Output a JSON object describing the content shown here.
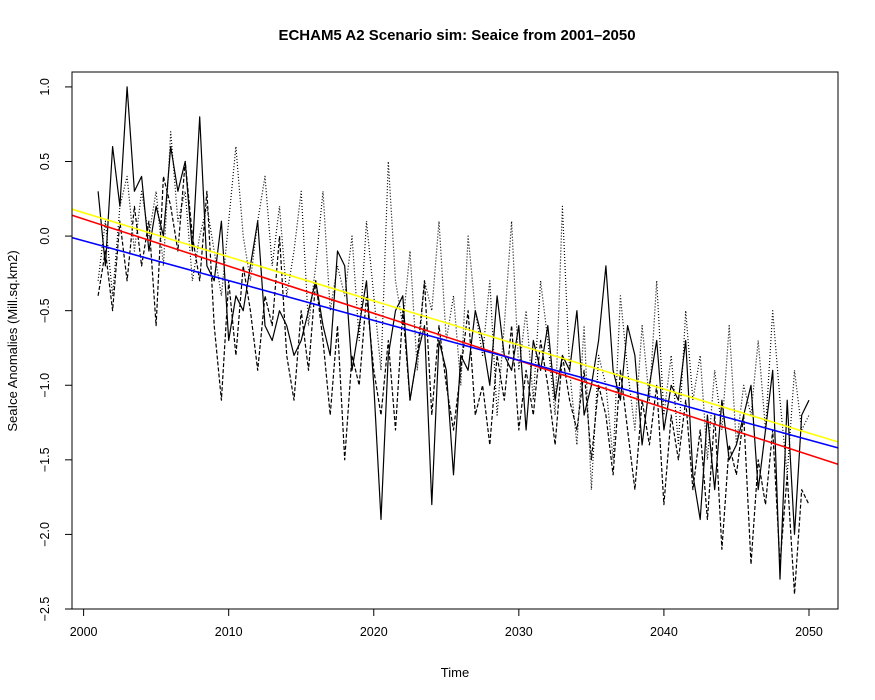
{
  "chart_data": {
    "type": "line",
    "title": "ECHAM5 A2 Scenario sim: Seaice from 2001–2050",
    "xlabel": "Time",
    "ylabel": "SeaIce Anomalies (Mill.sq.km2)",
    "xlim": [
      1999.2,
      2052.0
    ],
    "ylim": [
      -2.5,
      1.1
    ],
    "x_ticks": [
      2000,
      2010,
      2020,
      2030,
      2040,
      2050
    ],
    "x_tick_labels": [
      "2000",
      "2010",
      "2020",
      "2030",
      "2040",
      "2050"
    ],
    "y_ticks": [
      1.0,
      0.5,
      0.0,
      -0.5,
      -1.0,
      -1.5,
      -2.0,
      -2.5
    ],
    "y_tick_labels": [
      "1.0",
      "0.5",
      "0.0",
      "−0.5",
      "−1.0",
      "−1.5",
      "−2.0",
      "−2.5"
    ],
    "grid": false,
    "legend": "none",
    "series": [
      {
        "style": "solid",
        "color": "#000000",
        "x": [
          2001.0,
          2001.5,
          2002.0,
          2002.5,
          2003.0,
          2003.5,
          2004.0,
          2004.5,
          2005.0,
          2005.5,
          2006.0,
          2006.5,
          2007.0,
          2007.5,
          2008.0,
          2008.5,
          2009.0,
          2009.5,
          2010.0,
          2010.5,
          2011.0,
          2011.5,
          2012.0,
          2012.5,
          2013.0,
          2013.5,
          2014.0,
          2014.5,
          2015.0,
          2015.5,
          2016.0,
          2016.5,
          2017.0,
          2017.5,
          2018.0,
          2018.5,
          2019.0,
          2019.5,
          2020.0,
          2020.5,
          2021.0,
          2021.5,
          2022.0,
          2022.5,
          2023.0,
          2023.5,
          2024.0,
          2024.5,
          2025.0,
          2025.5,
          2026.0,
          2026.5,
          2027.0,
          2027.5,
          2028.0,
          2028.5,
          2029.0,
          2029.5,
          2030.0,
          2030.5,
          2031.0,
          2031.5,
          2032.0,
          2032.5,
          2033.0,
          2033.5,
          2034.0,
          2034.5,
          2035.0,
          2035.5,
          2036.0,
          2036.5,
          2037.0,
          2037.5,
          2038.0,
          2038.5,
          2039.0,
          2039.5,
          2040.0,
          2040.5,
          2041.0,
          2041.5,
          2042.0,
          2042.5,
          2043.0,
          2043.5,
          2044.0,
          2044.5,
          2045.0,
          2045.5,
          2046.0,
          2046.5,
          2047.0,
          2047.5,
          2048.0,
          2048.5,
          2049.0,
          2049.5,
          2050.0
        ],
        "y": [
          0.3,
          -0.2,
          0.6,
          0.2,
          1.0,
          0.3,
          0.4,
          -0.1,
          0.2,
          0.0,
          0.6,
          0.3,
          0.5,
          -0.1,
          0.8,
          -0.2,
          -0.3,
          0.1,
          -0.7,
          -0.4,
          -0.5,
          -0.2,
          0.1,
          -0.6,
          -0.7,
          -0.5,
          -0.6,
          -0.8,
          -0.7,
          -0.5,
          -0.3,
          -0.6,
          -0.8,
          -0.1,
          -0.2,
          -0.9,
          -0.6,
          -0.3,
          -1.0,
          -1.9,
          -0.8,
          -0.5,
          -0.4,
          -1.1,
          -0.8,
          -0.6,
          -1.8,
          -0.7,
          -0.9,
          -1.6,
          -0.8,
          -0.9,
          -0.5,
          -0.7,
          -1.0,
          -0.4,
          -0.8,
          -0.9,
          -0.6,
          -1.3,
          -0.7,
          -0.9,
          -0.6,
          -1.1,
          -0.8,
          -0.9,
          -0.5,
          -1.2,
          -1.0,
          -0.7,
          -0.2,
          -0.9,
          -1.1,
          -0.6,
          -0.8,
          -1.4,
          -1.0,
          -0.7,
          -1.3,
          -1.0,
          -1.1,
          -0.7,
          -1.6,
          -1.9,
          -1.2,
          -1.7,
          -1.1,
          -1.5,
          -1.4,
          -1.2,
          -1.0,
          -1.7,
          -1.3,
          -0.9,
          -2.3,
          -1.1,
          -2.0,
          -1.2,
          -1.1
        ]
      },
      {
        "style": "dashed",
        "color": "#000000",
        "x": [
          2001.0,
          2001.5,
          2002.0,
          2002.5,
          2003.0,
          2003.5,
          2004.0,
          2004.5,
          2005.0,
          2005.5,
          2006.0,
          2006.5,
          2007.0,
          2007.5,
          2008.0,
          2008.5,
          2009.0,
          2009.5,
          2010.0,
          2010.5,
          2011.0,
          2011.5,
          2012.0,
          2012.5,
          2013.0,
          2013.5,
          2014.0,
          2014.5,
          2015.0,
          2015.5,
          2016.0,
          2016.5,
          2017.0,
          2017.5,
          2018.0,
          2018.5,
          2019.0,
          2019.5,
          2020.0,
          2020.5,
          2021.0,
          2021.5,
          2022.0,
          2022.5,
          2023.0,
          2023.5,
          2024.0,
          2024.5,
          2025.0,
          2025.5,
          2026.0,
          2026.5,
          2027.0,
          2027.5,
          2028.0,
          2028.5,
          2029.0,
          2029.5,
          2030.0,
          2030.5,
          2031.0,
          2031.5,
          2032.0,
          2032.5,
          2033.0,
          2033.5,
          2034.0,
          2034.5,
          2035.0,
          2035.5,
          2036.0,
          2036.5,
          2037.0,
          2037.5,
          2038.0,
          2038.5,
          2039.0,
          2039.5,
          2040.0,
          2040.5,
          2041.0,
          2041.5,
          2042.0,
          2042.5,
          2043.0,
          2043.5,
          2044.0,
          2044.5,
          2045.0,
          2045.5,
          2046.0,
          2046.5,
          2047.0,
          2047.5,
          2048.0,
          2048.5,
          2049.0,
          2049.5,
          2050.0
        ],
        "y": [
          -0.4,
          -0.1,
          -0.5,
          0.1,
          -0.3,
          0.2,
          -0.2,
          0.1,
          -0.6,
          0.4,
          0.2,
          -0.1,
          0.5,
          0.0,
          -0.3,
          0.3,
          -0.6,
          -1.1,
          -0.3,
          -0.8,
          -0.2,
          -0.5,
          -0.9,
          -0.4,
          -0.6,
          0.0,
          -0.8,
          -1.1,
          -0.5,
          -0.9,
          -0.3,
          -0.7,
          -1.2,
          -0.6,
          -1.5,
          -0.8,
          -1.0,
          -0.4,
          -0.9,
          -1.2,
          -0.7,
          -1.3,
          -0.5,
          -1.1,
          -0.8,
          -0.3,
          -1.2,
          -0.6,
          -1.0,
          -1.3,
          -0.9,
          -0.5,
          -1.2,
          -1.0,
          -1.4,
          -0.8,
          -1.1,
          -0.6,
          -1.3,
          -0.9,
          -1.2,
          -0.7,
          -1.0,
          -1.4,
          -0.8,
          -1.1,
          -1.3,
          -0.9,
          -1.5,
          -1.0,
          -1.2,
          -1.6,
          -0.9,
          -1.3,
          -1.7,
          -1.1,
          -1.4,
          -1.0,
          -1.8,
          -1.2,
          -1.5,
          -1.1,
          -1.7,
          -1.3,
          -1.9,
          -1.2,
          -2.1,
          -1.4,
          -1.6,
          -1.2,
          -2.2,
          -1.5,
          -1.8,
          -1.3,
          -2.2,
          -1.6,
          -2.4,
          -1.7,
          -1.8
        ]
      },
      {
        "style": "dotted",
        "color": "#000000",
        "x": [
          2001.0,
          2001.5,
          2002.0,
          2002.5,
          2003.0,
          2003.5,
          2004.0,
          2004.5,
          2005.0,
          2005.5,
          2006.0,
          2006.5,
          2007.0,
          2007.5,
          2008.0,
          2008.5,
          2009.0,
          2009.5,
          2010.0,
          2010.5,
          2011.0,
          2011.5,
          2012.0,
          2012.5,
          2013.0,
          2013.5,
          2014.0,
          2014.5,
          2015.0,
          2015.5,
          2016.0,
          2016.5,
          2017.0,
          2017.5,
          2018.0,
          2018.5,
          2019.0,
          2019.5,
          2020.0,
          2020.5,
          2021.0,
          2021.5,
          2022.0,
          2022.5,
          2023.0,
          2023.5,
          2024.0,
          2024.5,
          2025.0,
          2025.5,
          2026.0,
          2026.5,
          2027.0,
          2027.5,
          2028.0,
          2028.5,
          2029.0,
          2029.5,
          2030.0,
          2030.5,
          2031.0,
          2031.5,
          2032.0,
          2032.5,
          2033.0,
          2033.5,
          2034.0,
          2034.5,
          2035.0,
          2035.5,
          2036.0,
          2036.5,
          2037.0,
          2037.5,
          2038.0,
          2038.5,
          2039.0,
          2039.5,
          2040.0,
          2040.5,
          2041.0,
          2041.5,
          2042.0,
          2042.5,
          2043.0,
          2043.5,
          2044.0,
          2044.5,
          2045.0,
          2045.5,
          2046.0,
          2046.5,
          2047.0,
          2047.5,
          2048.0,
          2048.5,
          2049.0,
          2049.5,
          2050.0
        ],
        "y": [
          -0.3,
          0.1,
          -0.4,
          0.2,
          0.4,
          -0.1,
          0.3,
          0.0,
          0.3,
          -0.2,
          0.7,
          0.1,
          0.3,
          -0.3,
          0.0,
          0.2,
          -0.1,
          -0.4,
          0.1,
          0.6,
          0.0,
          -0.3,
          0.1,
          0.4,
          -0.2,
          0.2,
          -0.4,
          -0.1,
          0.3,
          -0.6,
          -0.2,
          0.3,
          -0.5,
          -0.2,
          -0.4,
          0.0,
          -0.7,
          0.1,
          -0.4,
          -0.9,
          0.5,
          -0.3,
          -0.6,
          -0.1,
          -0.9,
          -0.3,
          -0.5,
          0.1,
          -0.7,
          -0.4,
          -1.0,
          0.0,
          -0.5,
          -0.8,
          -0.3,
          -1.2,
          -0.6,
          0.1,
          -0.9,
          -0.5,
          -1.1,
          -0.3,
          -0.7,
          -1.2,
          0.2,
          -0.9,
          -1.4,
          -0.6,
          -1.7,
          -0.8,
          -1.0,
          -1.5,
          -0.4,
          -0.9,
          -1.3,
          -0.6,
          -1.1,
          -0.3,
          -1.2,
          -0.8,
          -1.4,
          -0.5,
          -1.1,
          -0.8,
          -1.5,
          -0.9,
          -1.3,
          -0.6,
          -1.4,
          -1.0,
          -1.2,
          -0.7,
          -1.3,
          -0.5,
          -1.1,
          -1.6,
          -0.9,
          -1.3,
          -1.2
        ]
      },
      {
        "style": "solid",
        "color": "#ffff00",
        "x": [
          1999.2,
          2052.0
        ],
        "y": [
          0.18,
          -1.38
        ]
      },
      {
        "style": "solid",
        "color": "#ff0000",
        "x": [
          1999.2,
          2052.0
        ],
        "y": [
          0.14,
          -1.53
        ]
      },
      {
        "style": "solid",
        "color": "#0000ff",
        "x": [
          1999.2,
          2052.0
        ],
        "y": [
          -0.01,
          -1.42
        ]
      }
    ]
  }
}
